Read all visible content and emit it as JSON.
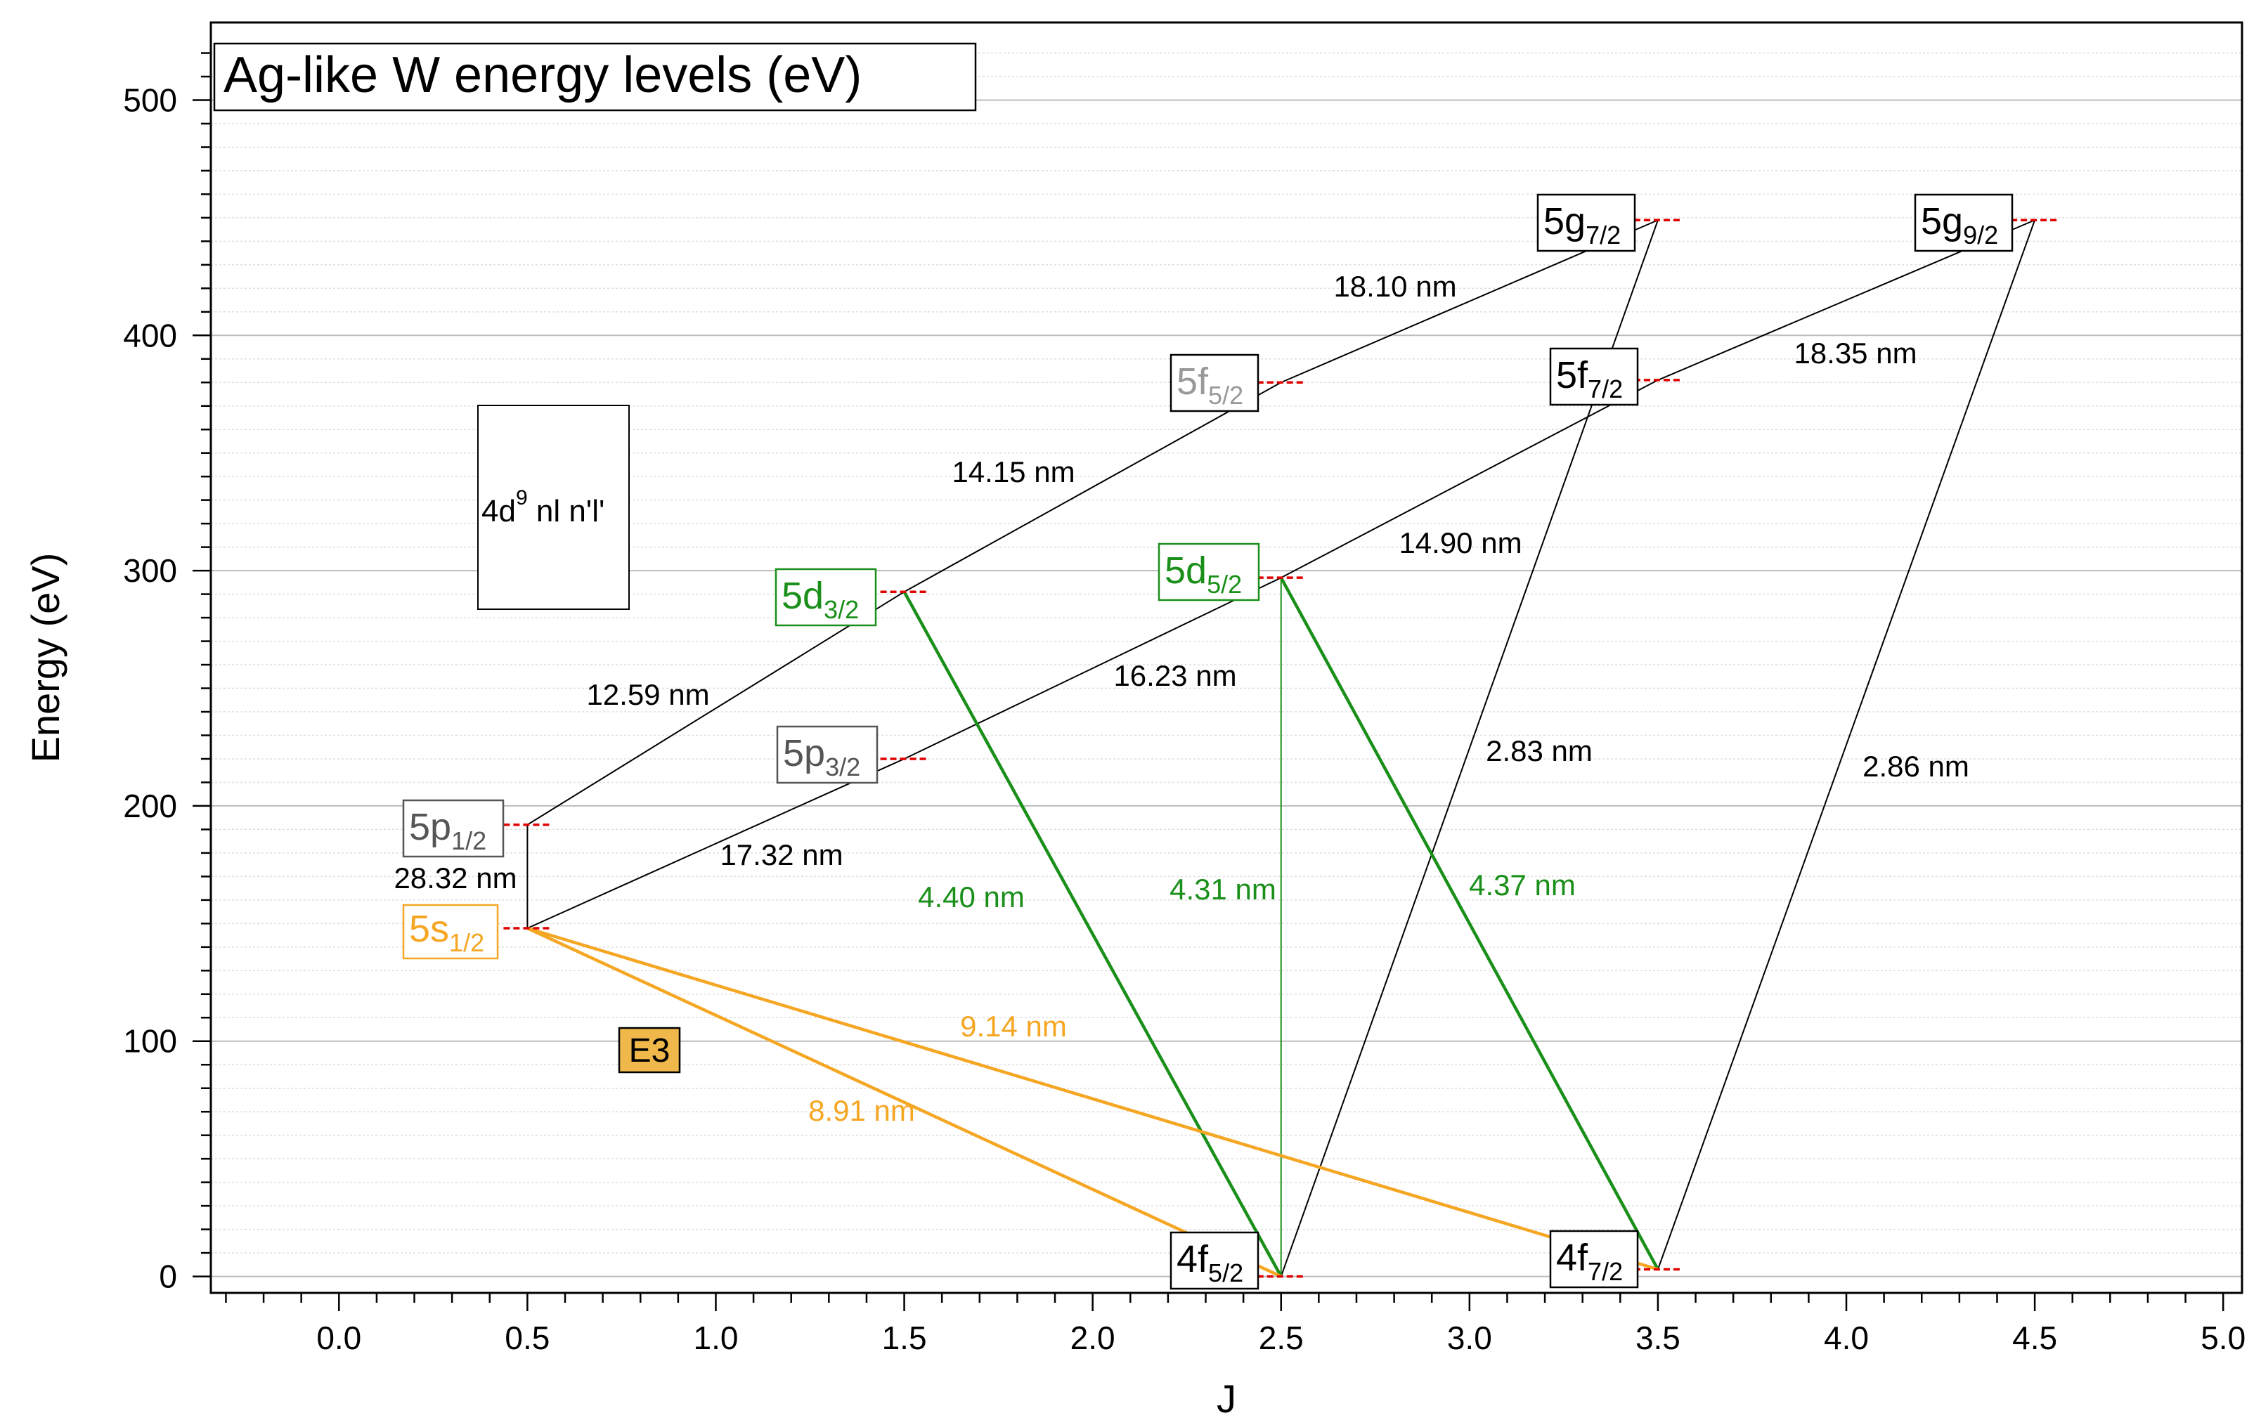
{
  "chart_data": {
    "type": "scatter",
    "title": "Ag-like W energy levels (eV)",
    "xlabel": "J",
    "ylabel": "Energy (eV)",
    "xlim": [
      -0.34,
      5.05
    ],
    "ylim": [
      -7,
      533
    ],
    "xticks": [
      0.0,
      0.5,
      1.0,
      1.5,
      2.0,
      2.5,
      3.0,
      3.5,
      4.0,
      4.5,
      5.0
    ],
    "yticks": [
      0,
      100,
      200,
      300,
      400,
      500
    ],
    "grid": true,
    "config_label": {
      "main": "4d",
      "sup": "9",
      "rest": " nl n'l'"
    },
    "e3_label": "E3",
    "colors": {
      "orange": "#f5a623",
      "green": "#1a8f1a",
      "gray": "#888888",
      "dark": "#000000",
      "level_marker": "#e00000",
      "e3_fill": "#f0b84a"
    },
    "levels": [
      {
        "id": "5s12",
        "main": "5s",
        "sub": "1/2",
        "J": 0.5,
        "E": 148,
        "color": "#f5a623"
      },
      {
        "id": "5p12",
        "main": "5p",
        "sub": "1/2",
        "J": 0.5,
        "E": 192,
        "color": "#555555"
      },
      {
        "id": "5p32",
        "main": "5p",
        "sub": "3/2",
        "J": 1.5,
        "E": 220,
        "color": "#555555"
      },
      {
        "id": "5d32",
        "main": "5d",
        "sub": "3/2",
        "J": 1.5,
        "E": 291,
        "color": "#1a8f1a"
      },
      {
        "id": "5d52",
        "main": "5d",
        "sub": "5/2",
        "J": 2.5,
        "E": 297,
        "color": "#1a8f1a"
      },
      {
        "id": "5f52",
        "main": "5f",
        "sub": "5/2",
        "J": 2.5,
        "E": 380,
        "color": "#999999"
      },
      {
        "id": "5f72",
        "main": "5f",
        "sub": "7/2",
        "J": 3.5,
        "E": 381,
        "color": "#000000"
      },
      {
        "id": "5g72",
        "main": "5g",
        "sub": "7/2",
        "J": 3.5,
        "E": 449,
        "color": "#000000"
      },
      {
        "id": "5g92",
        "main": "5g",
        "sub": "9/2",
        "J": 4.5,
        "E": 449,
        "color": "#000000"
      },
      {
        "id": "4f52",
        "main": "4f",
        "sub": "5/2",
        "J": 2.5,
        "E": 0,
        "color": "#000000"
      },
      {
        "id": "4f72",
        "main": "4f",
        "sub": "7/2",
        "J": 3.5,
        "E": 3,
        "color": "#000000"
      }
    ],
    "transitions": [
      {
        "from": "5s12",
        "to": "5p12",
        "label": "28.32 nm",
        "color": "#000000"
      },
      {
        "from": "5p12",
        "to": "5d32",
        "label": "12.59 nm",
        "color": "#000000"
      },
      {
        "from": "5d32",
        "to": "5f52",
        "label": "14.15 nm",
        "color": "#000000"
      },
      {
        "from": "5f52",
        "to": "5g72",
        "label": "18.10 nm",
        "color": "#000000"
      },
      {
        "from": "5s12",
        "to": "5p32",
        "label": "17.32 nm",
        "color": "#000000"
      },
      {
        "from": "5p32",
        "to": "5d52",
        "label": "16.23 nm",
        "color": "#000000"
      },
      {
        "from": "5d52",
        "to": "5f72",
        "label": "14.90 nm",
        "color": "#000000"
      },
      {
        "from": "5f72",
        "to": "5g92",
        "label": "18.35 nm",
        "color": "#000000"
      },
      {
        "from": "4f52",
        "to": "5g72",
        "label": "2.83 nm",
        "color": "#000000"
      },
      {
        "from": "4f72",
        "to": "5g92",
        "label": "2.86 nm",
        "color": "#000000"
      },
      {
        "from": "5d32",
        "to": "4f52",
        "label": "4.40 nm",
        "color": "#1a8f1a"
      },
      {
        "from": "5d52",
        "to": "4f52",
        "label": "4.31 nm",
        "color": "#1a8f1a"
      },
      {
        "from": "5d52",
        "to": "4f72",
        "label": "4.37 nm",
        "color": "#1a8f1a"
      },
      {
        "from": "5s12",
        "to": "4f52",
        "label": "8.91 nm",
        "color": "#f5a623"
      },
      {
        "from": "5s12",
        "to": "4f72",
        "label": "9.14 nm",
        "color": "#f5a623"
      }
    ]
  }
}
